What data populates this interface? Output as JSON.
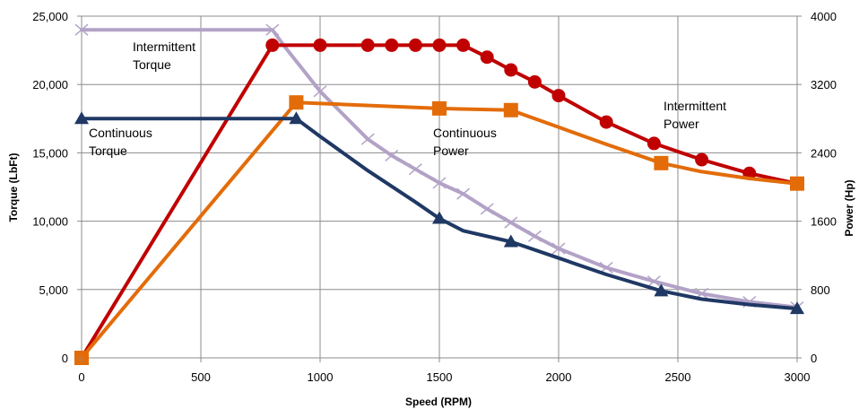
{
  "chart_data": {
    "type": "line",
    "xlabel": "Speed (RPM)",
    "ylabel": "Torque (LbFt)",
    "ylabel_right": "Power (Hp)",
    "xlim": [
      0,
      3000
    ],
    "ylim": [
      0,
      25000
    ],
    "ylim_right": [
      0,
      4000
    ],
    "grid": true,
    "x_ticks": [
      "0",
      "500",
      "1000",
      "1500",
      "2000",
      "2500",
      "3000"
    ],
    "y_ticks": [
      "0",
      "5,000",
      "10,000",
      "15,000",
      "20,000",
      "25,000"
    ],
    "y_ticks_right": [
      "0",
      "800",
      "1600",
      "2400",
      "3200",
      "4000"
    ],
    "series": [
      {
        "key": "intermittent-torque",
        "axis": "left",
        "color": "#b3a2c7",
        "marker": "x",
        "points": [
          [
            0,
            24000
          ],
          [
            800,
            24000
          ],
          [
            850,
            22800
          ],
          [
            1000,
            19500
          ],
          [
            1200,
            16000
          ],
          [
            1300,
            14800
          ],
          [
            1400,
            13800
          ],
          [
            1500,
            12800
          ],
          [
            1600,
            12000
          ],
          [
            1700,
            10900
          ],
          [
            1800,
            9900
          ],
          [
            1900,
            8900
          ],
          [
            2000,
            8000
          ],
          [
            2200,
            6600
          ],
          [
            2400,
            5600
          ],
          [
            2600,
            4700
          ],
          [
            2800,
            4100
          ],
          [
            3000,
            3700
          ]
        ],
        "markers": [
          [
            0,
            24000
          ],
          [
            800,
            24000
          ],
          [
            1000,
            19500
          ],
          [
            1200,
            16000
          ],
          [
            1300,
            14800
          ],
          [
            1400,
            13800
          ],
          [
            1500,
            12800
          ],
          [
            1600,
            12000
          ],
          [
            1700,
            10900
          ],
          [
            1800,
            9900
          ],
          [
            1900,
            8900
          ],
          [
            2000,
            8000
          ],
          [
            2200,
            6600
          ],
          [
            2400,
            5600
          ],
          [
            2600,
            4700
          ],
          [
            2800,
            4100
          ],
          [
            3000,
            3700
          ]
        ]
      },
      {
        "key": "intermittent-power",
        "axis": "right",
        "color": "#c00000",
        "marker": "circle",
        "points": [
          [
            0,
            0
          ],
          [
            800,
            3660
          ],
          [
            1000,
            3660
          ],
          [
            1200,
            3660
          ],
          [
            1300,
            3660
          ],
          [
            1400,
            3660
          ],
          [
            1500,
            3660
          ],
          [
            1600,
            3660
          ],
          [
            1700,
            3520
          ],
          [
            1800,
            3370
          ],
          [
            1900,
            3230
          ],
          [
            2000,
            3070
          ],
          [
            2200,
            2760
          ],
          [
            2400,
            2510
          ],
          [
            2600,
            2320
          ],
          [
            2800,
            2160
          ],
          [
            3000,
            2040
          ]
        ],
        "markers": [
          [
            0,
            0
          ],
          [
            800,
            3660
          ],
          [
            1000,
            3660
          ],
          [
            1200,
            3660
          ],
          [
            1300,
            3660
          ],
          [
            1400,
            3660
          ],
          [
            1500,
            3660
          ],
          [
            1600,
            3660
          ],
          [
            1700,
            3520
          ],
          [
            1800,
            3370
          ],
          [
            1900,
            3230
          ],
          [
            2000,
            3070
          ],
          [
            2200,
            2760
          ],
          [
            2400,
            2510
          ],
          [
            2600,
            2320
          ],
          [
            2800,
            2160
          ]
        ]
      },
      {
        "key": "continuous-power",
        "axis": "right",
        "color": "#e36c09",
        "marker": "square",
        "points": [
          [
            0,
            0
          ],
          [
            900,
            2990
          ],
          [
            1500,
            2920
          ],
          [
            1800,
            2900
          ],
          [
            2000,
            2700
          ],
          [
            2200,
            2500
          ],
          [
            2430,
            2280
          ],
          [
            2600,
            2180
          ],
          [
            2800,
            2100
          ],
          [
            3000,
            2040
          ]
        ],
        "markers": [
          [
            0,
            0
          ],
          [
            900,
            2990
          ],
          [
            1500,
            2920
          ],
          [
            1800,
            2900
          ],
          [
            2430,
            2280
          ],
          [
            3000,
            2040
          ]
        ]
      },
      {
        "key": "continuous-torque",
        "axis": "left",
        "color": "#1f3864",
        "marker": "triangle",
        "points": [
          [
            0,
            17500
          ],
          [
            900,
            17500
          ],
          [
            1000,
            16200
          ],
          [
            1200,
            13700
          ],
          [
            1400,
            11400
          ],
          [
            1500,
            10200
          ],
          [
            1600,
            9300
          ],
          [
            1800,
            8500
          ],
          [
            2000,
            7300
          ],
          [
            2200,
            6100
          ],
          [
            2430,
            4900
          ],
          [
            2600,
            4300
          ],
          [
            2800,
            3900
          ],
          [
            3000,
            3600
          ]
        ],
        "markers": [
          [
            0,
            17500
          ],
          [
            900,
            17500
          ],
          [
            1500,
            10200
          ],
          [
            1800,
            8500
          ],
          [
            2430,
            4900
          ],
          [
            3000,
            3600
          ]
        ]
      }
    ],
    "annotations": [
      {
        "key": "intermittent-torque",
        "lines": [
          "Intermittent",
          "Torque"
        ]
      },
      {
        "key": "continuous-torque",
        "lines": [
          "Continuous",
          "Torque"
        ]
      },
      {
        "key": "continuous-power",
        "lines": [
          "Continuous",
          "Power"
        ]
      },
      {
        "key": "intermittent-power",
        "lines": [
          "Intermittent",
          "Power"
        ]
      }
    ]
  }
}
